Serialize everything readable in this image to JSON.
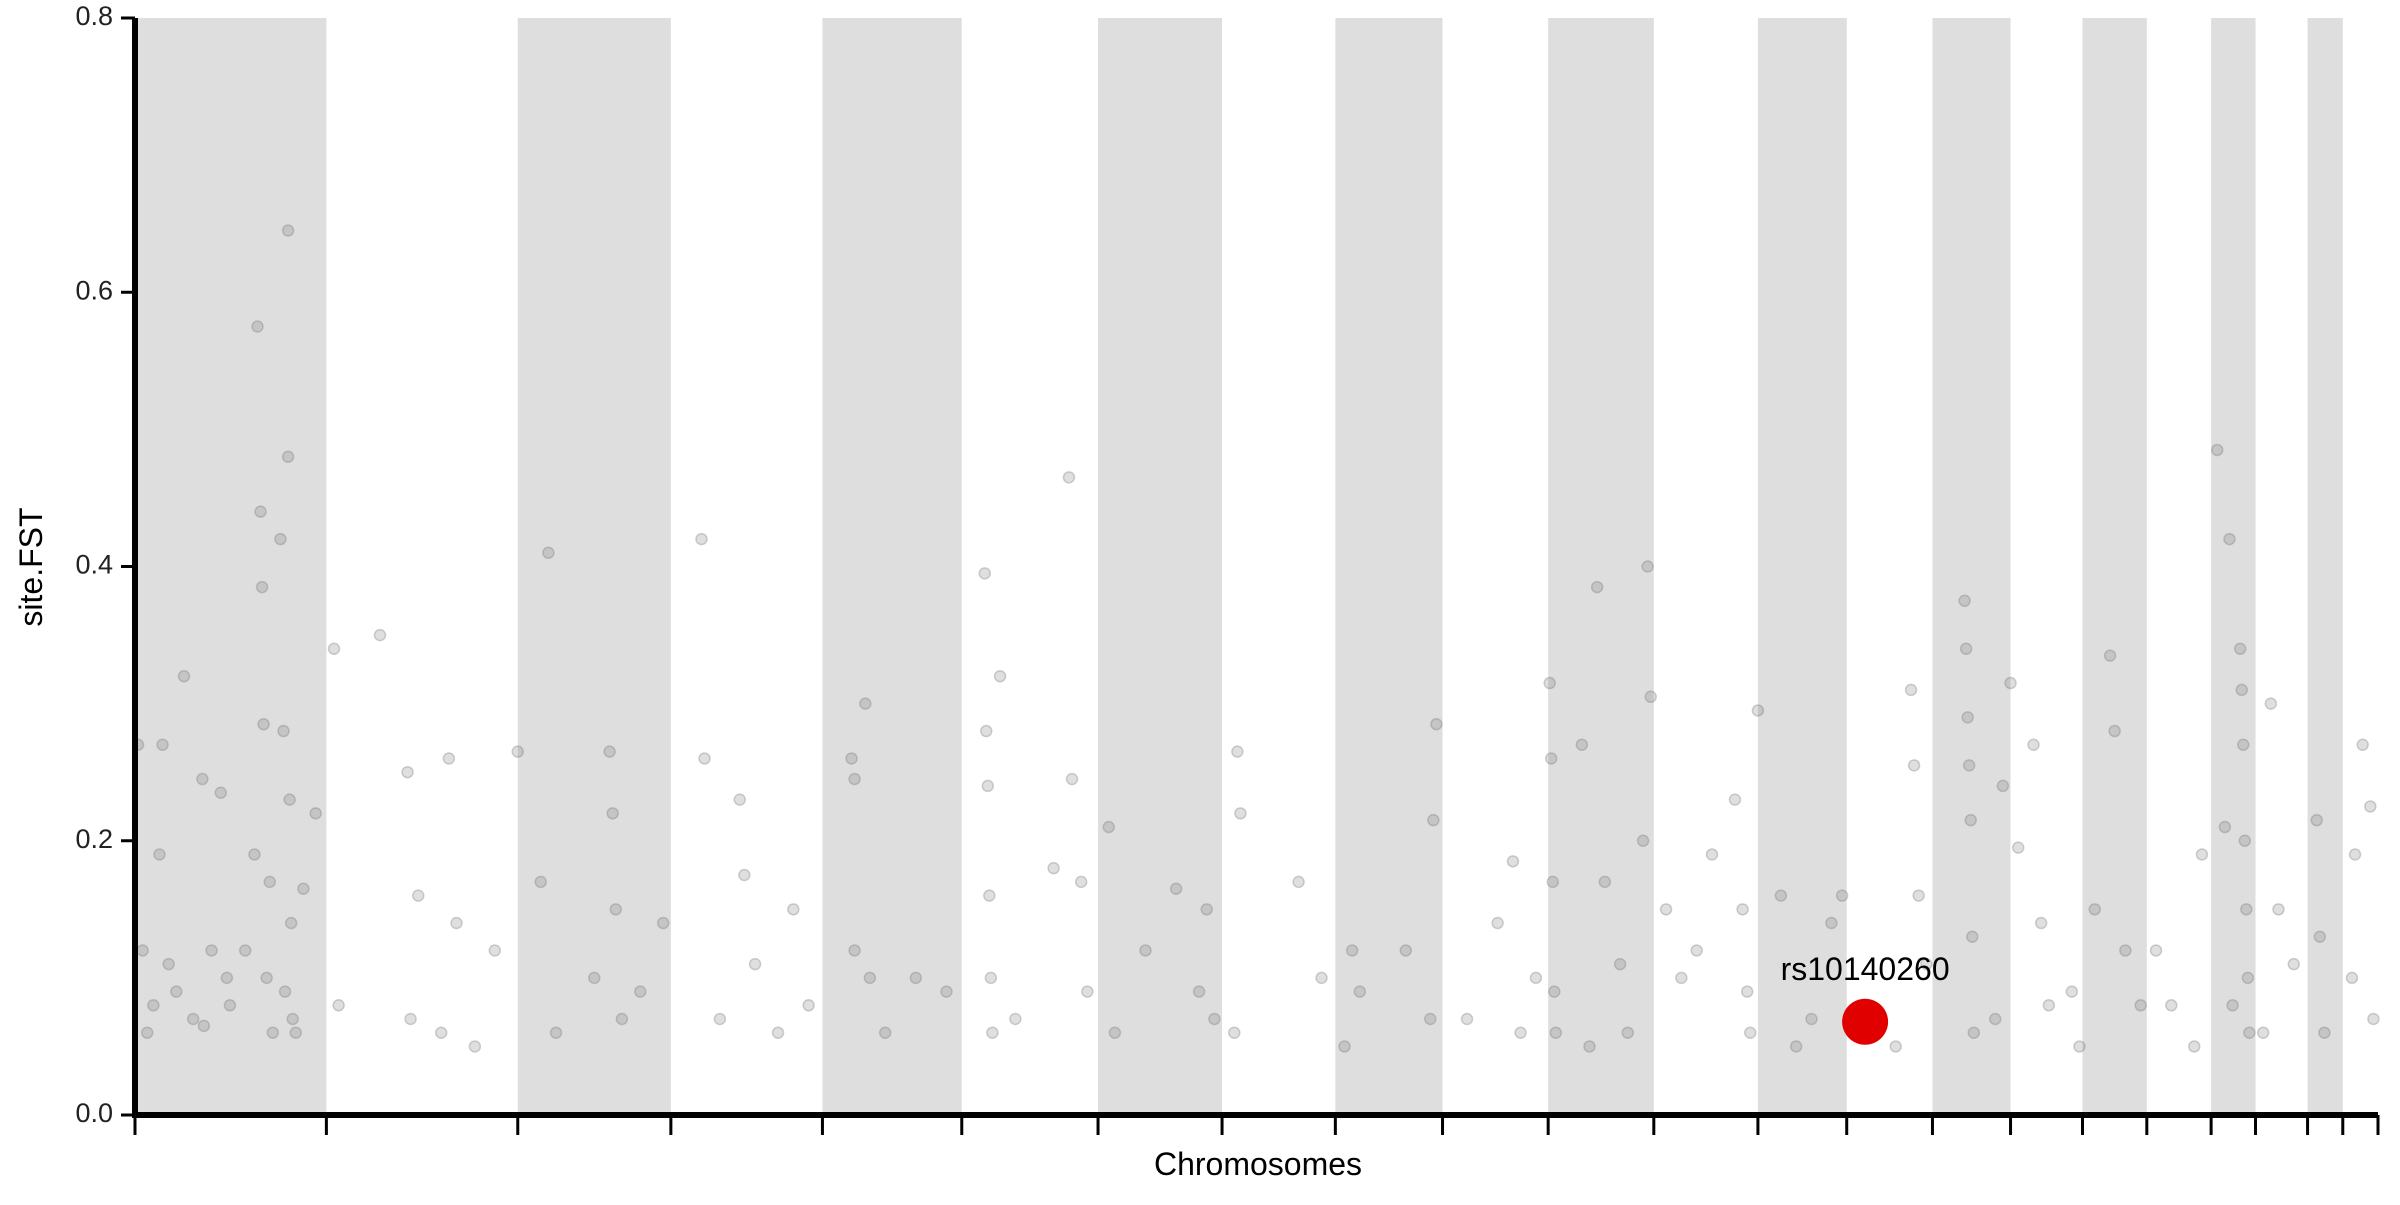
{
  "chart_data": {
    "type": "scatter",
    "x_label": "Chromosomes",
    "y_label": "site.FST",
    "xlim": [
      0,
      1465
    ],
    "ylim": [
      0,
      0.8
    ],
    "yticks": [
      {
        "value": 0,
        "label": "0.0"
      },
      0.2,
      0.4,
      0.6,
      0.8
    ],
    "xticks": [
      0,
      125,
      250,
      350,
      449,
      540,
      629,
      710,
      784,
      854,
      923,
      992,
      1060,
      1118,
      1174,
      1225,
      1272,
      1314,
      1356,
      1385,
      1419,
      1442,
      1465
    ],
    "band_color": "#dedede",
    "point_color": "#6e6e6e",
    "x": [
      2,
      5,
      8,
      12,
      16,
      18,
      22,
      27,
      32,
      38,
      44,
      50,
      56,
      62,
      72,
      78,
      80,
      82,
      83,
      84,
      86,
      90,
      95,
      97,
      100,
      100,
      101,
      102,
      103,
      105,
      110,
      118,
      45,
      60,
      88,
      98,
      130,
      133,
      160,
      178,
      180,
      185,
      205,
      210,
      222,
      235,
      250,
      200,
      270,
      265,
      275,
      310,
      312,
      314,
      318,
      345,
      300,
      330,
      370,
      372,
      382,
      395,
      398,
      405,
      430,
      440,
      420,
      468,
      470,
      477,
      480,
      470,
      490,
      510,
      530,
      555,
      556,
      557,
      558,
      559,
      560,
      565,
      575,
      610,
      612,
      618,
      600,
      622,
      636,
      640,
      660,
      680,
      695,
      700,
      705,
      720,
      722,
      718,
      760,
      775,
      795,
      800,
      790,
      830,
      850,
      848,
      846,
      870,
      890,
      900,
      915,
      905,
      924,
      925,
      926,
      927,
      928,
      945,
      955,
      960,
      970,
      988,
      990,
      985,
      975,
      950,
      1000,
      1010,
      1020,
      1045,
      1050,
      1053,
      1055,
      1030,
      1060,
      1075,
      1085,
      1095,
      1108,
      1115,
      1160,
      1162,
      1165,
      1170,
      1140,
      1150,
      1195,
      1196,
      1197,
      1198,
      1199,
      1200,
      1201,
      1225,
      1220,
      1215,
      1230,
      1240,
      1245,
      1250,
      1265,
      1270,
      1290,
      1293,
      1300,
      1310,
      1280,
      1330,
      1345,
      1350,
      1320,
      1360,
      1368,
      1375,
      1376,
      1377,
      1378,
      1379,
      1380,
      1381,
      1365,
      1370,
      1395,
      1400,
      1410,
      1390,
      1425,
      1427,
      1430,
      1450,
      1455,
      1460,
      1462,
      1448
    ],
    "y": [
      0.27,
      0.12,
      0.06,
      0.08,
      0.19,
      0.27,
      0.11,
      0.09,
      0.32,
      0.07,
      0.245,
      0.12,
      0.235,
      0.08,
      0.12,
      0.19,
      0.575,
      0.44,
      0.385,
      0.285,
      0.1,
      0.06,
      0.42,
      0.28,
      0.645,
      0.48,
      0.23,
      0.14,
      0.07,
      0.06,
      0.165,
      0.22,
      0.065,
      0.1,
      0.17,
      0.09,
      0.34,
      0.08,
      0.35,
      0.25,
      0.07,
      0.16,
      0.26,
      0.14,
      0.05,
      0.12,
      0.265,
      0.06,
      0.41,
      0.17,
      0.06,
      0.265,
      0.22,
      0.15,
      0.07,
      0.14,
      0.1,
      0.09,
      0.42,
      0.26,
      0.07,
      0.23,
      0.175,
      0.11,
      0.15,
      0.08,
      0.06,
      0.26,
      0.12,
      0.3,
      0.1,
      0.245,
      0.06,
      0.1,
      0.09,
      0.395,
      0.28,
      0.24,
      0.16,
      0.1,
      0.06,
      0.32,
      0.07,
      0.465,
      0.245,
      0.17,
      0.18,
      0.09,
      0.21,
      0.06,
      0.12,
      0.165,
      0.09,
      0.15,
      0.07,
      0.265,
      0.22,
      0.06,
      0.17,
      0.1,
      0.12,
      0.09,
      0.05,
      0.12,
      0.285,
      0.215,
      0.07,
      0.07,
      0.14,
      0.185,
      0.1,
      0.06,
      0.315,
      0.26,
      0.17,
      0.09,
      0.06,
      0.27,
      0.385,
      0.17,
      0.11,
      0.4,
      0.305,
      0.2,
      0.06,
      0.05,
      0.15,
      0.1,
      0.12,
      0.23,
      0.15,
      0.09,
      0.06,
      0.19,
      0.295,
      0.16,
      0.05,
      0.07,
      0.14,
      0.16,
      0.31,
      0.255,
      0.16,
      0.11,
      0.07,
      0.05,
      0.375,
      0.34,
      0.29,
      0.255,
      0.215,
      0.13,
      0.06,
      0.315,
      0.24,
      0.07,
      0.195,
      0.27,
      0.14,
      0.08,
      0.09,
      0.05,
      0.335,
      0.28,
      0.12,
      0.08,
      0.15,
      0.08,
      0.05,
      0.19,
      0.12,
      0.485,
      0.42,
      0.34,
      0.31,
      0.27,
      0.2,
      0.15,
      0.1,
      0.06,
      0.21,
      0.08,
      0.3,
      0.15,
      0.11,
      0.06,
      0.215,
      0.13,
      0.06,
      0.19,
      0.27,
      0.225,
      0.07,
      0.1
    ],
    "highlight": {
      "label": "rs10140260",
      "x": 1130,
      "y": 0.068,
      "color": "#e00000"
    }
  }
}
